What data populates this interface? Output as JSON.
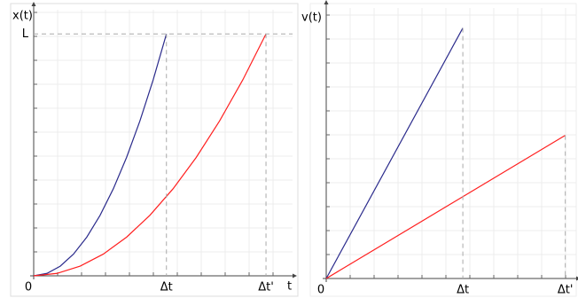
{
  "chart_data": [
    {
      "type": "line",
      "y_label": "x(t)",
      "x_label": "t",
      "xlim": [
        0,
        1.95
      ],
      "ylim": [
        0,
        1.1
      ],
      "xticks": [
        {
          "value": 0,
          "label": "0"
        },
        {
          "value": 1,
          "label": "Δt"
        },
        {
          "value": 1.75,
          "label": "Δt'"
        }
      ],
      "yticks": [
        {
          "value": 1,
          "label": "L"
        }
      ],
      "series": [
        {
          "color": "#2b2b8c",
          "x": [
            0,
            0.1,
            0.2,
            0.3,
            0.4,
            0.5,
            0.6,
            0.7,
            0.8,
            0.9,
            1
          ],
          "values": [
            0,
            0.01,
            0.04,
            0.09,
            0.16,
            0.25,
            0.36,
            0.49,
            0.64,
            0.81,
            1
          ]
        },
        {
          "color": "#ff2020",
          "x": [
            0,
            0.175,
            0.35,
            0.525,
            0.7,
            0.875,
            1.05,
            1.225,
            1.4,
            1.575,
            1.75
          ],
          "values": [
            0,
            0.01,
            0.04,
            0.09,
            0.16,
            0.25,
            0.36,
            0.49,
            0.64,
            0.81,
            1
          ]
        }
      ]
    },
    {
      "type": "line",
      "y_label": "v(t)",
      "xlim": [
        0,
        1.83
      ],
      "ylim": [
        0,
        2.16
      ],
      "xticks": [
        {
          "value": 0,
          "label": "0"
        },
        {
          "value": 1,
          "label": "Δt"
        },
        {
          "value": 1.75,
          "label": "Δt'"
        }
      ],
      "series": [
        {
          "color": "#2b2b8c",
          "x": [
            0,
            1
          ],
          "values": [
            0,
            2
          ]
        },
        {
          "color": "#ff2020",
          "x": [
            0,
            1.75
          ],
          "values": [
            0,
            1.143
          ]
        }
      ]
    }
  ]
}
